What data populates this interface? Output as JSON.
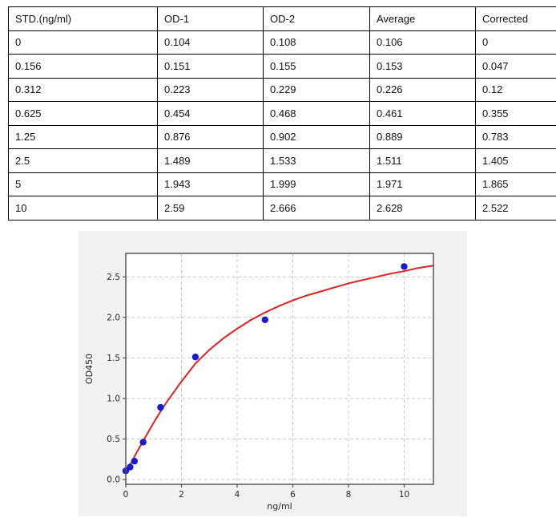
{
  "table": {
    "columns": [
      "STD.(ng/ml)",
      "OD-1",
      "OD-2",
      "Average",
      "Corrected"
    ],
    "rows": [
      [
        "0",
        "0.104",
        "0.108",
        "0.106",
        "0"
      ],
      [
        "0.156",
        "0.151",
        "0.155",
        "0.153",
        "0.047"
      ],
      [
        "0.312",
        "0.223",
        "0.229",
        "0.226",
        "0.12"
      ],
      [
        "0.625",
        "0.454",
        "0.468",
        "0.461",
        "0.355"
      ],
      [
        "1.25",
        "0.876",
        "0.902",
        "0.889",
        "0.783"
      ],
      [
        "2.5",
        "1.489",
        "1.533",
        "1.511",
        "1.405"
      ],
      [
        "5",
        "1.943",
        "1.999",
        "1.971",
        "1.865"
      ],
      [
        "10",
        "2.59",
        "2.666",
        "2.628",
        "2.522"
      ]
    ]
  },
  "chart_data": {
    "type": "scatter",
    "title": "",
    "xlabel": "ng/ml",
    "ylabel": "OD450",
    "xlim": [
      0,
      11.05
    ],
    "ylim": [
      -0.06,
      2.79
    ],
    "x_ticks": [
      0,
      2,
      4,
      6,
      8,
      10
    ],
    "x_tick_labels": [
      "0",
      "2",
      "4",
      "6",
      "8",
      "10"
    ],
    "y_ticks": [
      0,
      0.5,
      1.0,
      1.5,
      2.0,
      2.5
    ],
    "y_tick_labels": [
      "0.0",
      "0.5",
      "1.0",
      "1.5",
      "2.0",
      "2.5"
    ],
    "grid": true,
    "legend": "none",
    "points": {
      "name": "standard-averages",
      "x": [
        0,
        0.156,
        0.312,
        0.625,
        1.25,
        2.5,
        5,
        10
      ],
      "y": [
        0.106,
        0.153,
        0.226,
        0.461,
        0.889,
        1.511,
        1.971,
        2.628
      ]
    },
    "fit_curve": {
      "name": "4pl-fit",
      "x": [
        0,
        0.2,
        0.4,
        0.6,
        0.8,
        1.0,
        1.25,
        1.5,
        1.75,
        2.0,
        2.5,
        3.0,
        3.5,
        4.0,
        4.5,
        5.0,
        5.5,
        6.0,
        6.5,
        7.0,
        7.5,
        8.0,
        8.5,
        9.0,
        9.5,
        10.0,
        10.5,
        11.05
      ],
      "y": [
        0.09,
        0.21,
        0.34,
        0.46,
        0.58,
        0.7,
        0.84,
        0.97,
        1.09,
        1.21,
        1.43,
        1.6,
        1.74,
        1.86,
        1.97,
        2.06,
        2.14,
        2.21,
        2.27,
        2.32,
        2.37,
        2.42,
        2.46,
        2.5,
        2.54,
        2.57,
        2.61,
        2.64
      ]
    },
    "colors": {
      "point": "#1a1acd",
      "curve": "#dd2222",
      "grid": "#c9c9c9",
      "spine": "#555555",
      "panel_bg": "#f2f2f2",
      "plot_bg": "#ffffff",
      "tick_text": "#262626"
    }
  }
}
